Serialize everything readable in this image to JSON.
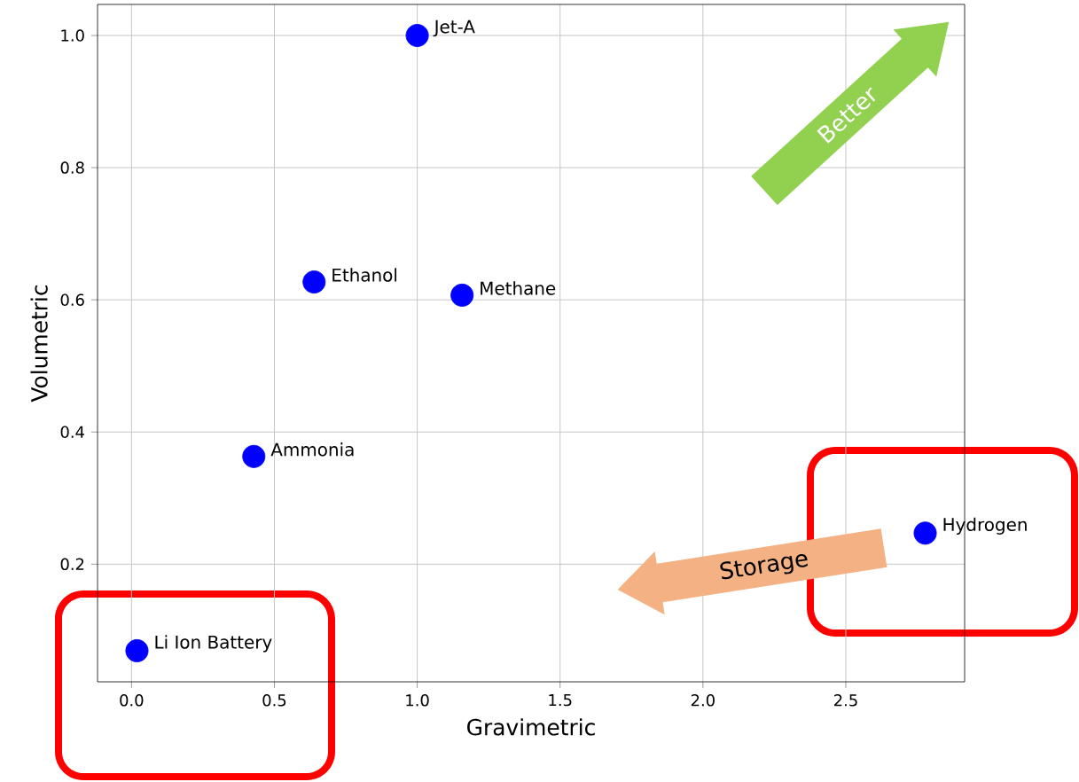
{
  "chart_data": {
    "type": "scatter",
    "xlabel": "Gravimetric",
    "ylabel": "Volumetric",
    "x": [
      0.019,
      0.428,
      0.639,
      1.0,
      1.157,
      2.778
    ],
    "values": [
      0.069,
      0.363,
      0.627,
      1.0,
      0.607,
      0.247
    ],
    "color": "#0000ff",
    "marker": "circle",
    "grid": true,
    "xlim": [
      -0.119,
      2.916
    ],
    "ylim": [
      0.022,
      1.047
    ],
    "xticks": [
      {
        "value": 0,
        "label": "0.0"
      },
      0.5,
      {
        "value": 1,
        "label": "1.0"
      },
      1.5,
      {
        "value": 2,
        "label": "2.0"
      },
      2.5
    ],
    "yticks": [
      0.2,
      0.4,
      0.6,
      0.8,
      {
        "value": 1,
        "label": "1.0"
      }
    ],
    "annotations": [
      {
        "text": "Li Ion Battery",
        "x": 0.019,
        "y": 0.069
      },
      {
        "text": "Ammonia",
        "x": 0.428,
        "y": 0.363
      },
      {
        "text": "Ethanol",
        "x": 0.639,
        "y": 0.627
      },
      {
        "text": "Jet-A",
        "x": 1.0,
        "y": 1.0
      },
      {
        "text": "Methane",
        "x": 1.157,
        "y": 0.607
      },
      {
        "text": "Hydrogen",
        "x": 2.778,
        "y": 0.247
      },
      "Better",
      "Storage"
    ]
  }
}
